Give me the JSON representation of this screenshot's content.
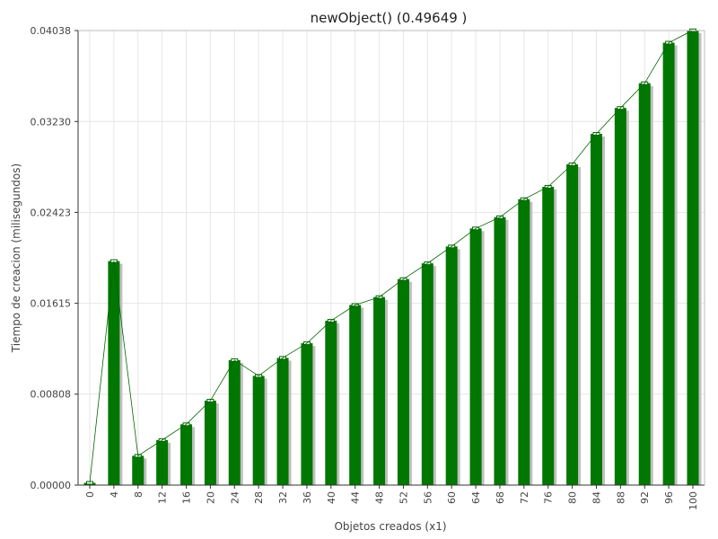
{
  "chart_data": {
    "type": "bar",
    "title": "newObject() (0.49649 )",
    "xlabel": "Objetos creados (x1)",
    "ylabel": "Tiempo de creacion (milisegundos)",
    "ylim": [
      0,
      0.04038
    ],
    "y_ticks": [
      "0.00000",
      "0.00808",
      "0.01615",
      "0.02423",
      "0.03230",
      "0.04038"
    ],
    "categories": [
      "0",
      "4",
      "8",
      "12",
      "16",
      "20",
      "24",
      "28",
      "32",
      "36",
      "40",
      "44",
      "48",
      "52",
      "56",
      "60",
      "64",
      "68",
      "72",
      "76",
      "80",
      "84",
      "88",
      "92",
      "96",
      "100"
    ],
    "values": [
      0.0002,
      0.0199,
      0.0026,
      0.004,
      0.0054,
      0.0075,
      0.0111,
      0.0097,
      0.0113,
      0.0126,
      0.0146,
      0.016,
      0.0167,
      0.0183,
      0.0197,
      0.0212,
      0.0228,
      0.0238,
      0.0254,
      0.0265,
      0.0285,
      0.0312,
      0.0335,
      0.0357,
      0.0393,
      0.0404
    ],
    "grid": true,
    "line_overlay": true,
    "colors": {
      "bar": "#007700",
      "bar_shadow": "#c0c0c0",
      "line": "#006600",
      "grid": "#e6e6e6",
      "axis": "#333333"
    }
  }
}
